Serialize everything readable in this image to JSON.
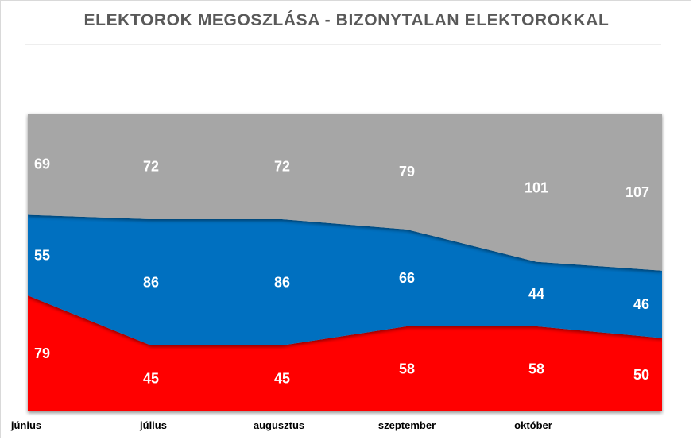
{
  "chart_data": {
    "type": "area",
    "stacked": true,
    "title": "ELEKTOROK MEGOSZLÁSA - BIZONYTALAN ELEKTOROKKAL",
    "categories": [
      "június",
      "július",
      "augusztus",
      "szeptember",
      "október",
      ""
    ],
    "series": [
      {
        "values": [
          79,
          45,
          45,
          58,
          58,
          50
        ],
        "color": "#ff0000"
      },
      {
        "values": [
          55,
          86,
          86,
          66,
          44,
          46
        ],
        "color": "#0070c0"
      },
      {
        "values": [
          69,
          72,
          72,
          79,
          101,
          107
        ],
        "color": "#a6a6a6"
      }
    ],
    "ylim": [
      0,
      203
    ],
    "grid": false,
    "legend": "none",
    "data_labels": true
  }
}
